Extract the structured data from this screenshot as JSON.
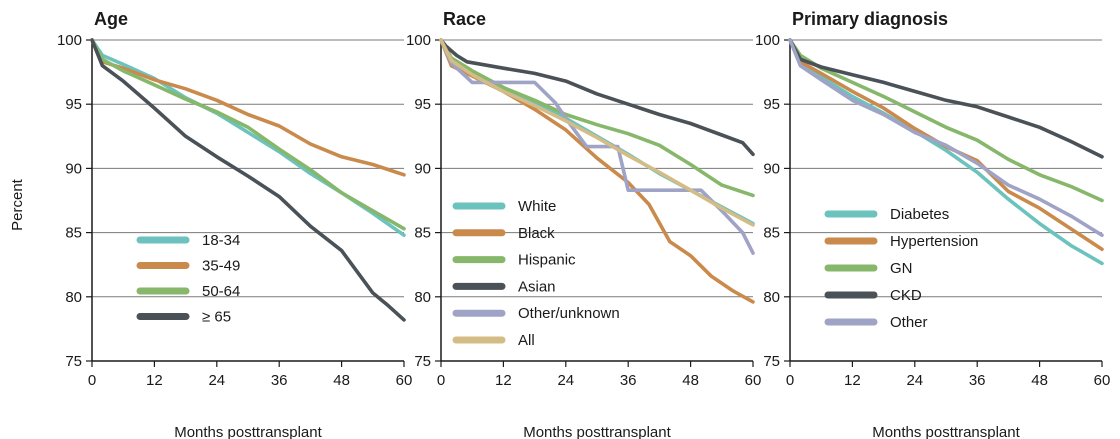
{
  "ylabel": "Percent",
  "chart_data": [
    {
      "type": "line",
      "title": "Age",
      "xlabel": "Months posttransplant",
      "ylabel": "Percent",
      "xlim": [
        0,
        60
      ],
      "ylim": [
        75,
        100
      ],
      "xticks": [
        0,
        12,
        24,
        36,
        48,
        60
      ],
      "yticks": [
        75,
        80,
        85,
        90,
        95,
        100
      ],
      "grid": "horizontal",
      "legend_position": "lower-left",
      "series": [
        {
          "name": "18-34",
          "color": "#6cc2bd",
          "x": [
            0,
            2,
            6,
            12,
            18,
            24,
            30,
            36,
            42,
            48,
            54,
            60
          ],
          "y": [
            100,
            98.8,
            98.1,
            97.0,
            95.5,
            94.3,
            92.8,
            91.3,
            89.6,
            88.1,
            86.5,
            84.8
          ]
        },
        {
          "name": "35-49",
          "color": "#c98a4c",
          "x": [
            0,
            2,
            6,
            12,
            18,
            24,
            30,
            36,
            42,
            48,
            54,
            60
          ],
          "y": [
            100,
            98.3,
            97.8,
            96.9,
            96.2,
            95.3,
            94.2,
            93.3,
            91.9,
            90.9,
            90.3,
            89.5
          ]
        },
        {
          "name": "50-64",
          "color": "#86b76a",
          "x": [
            0,
            2,
            6,
            12,
            18,
            24,
            30,
            36,
            42,
            48,
            54,
            60
          ],
          "y": [
            100,
            98.5,
            97.6,
            96.5,
            95.4,
            94.4,
            93.2,
            91.5,
            89.9,
            88.1,
            86.7,
            85.3
          ]
        },
        {
          "name": "≥ 65",
          "color": "#4a5258",
          "x": [
            0,
            2,
            6,
            12,
            18,
            24,
            30,
            36,
            42,
            48,
            54,
            57,
            60
          ],
          "y": [
            100,
            98.0,
            96.8,
            94.7,
            92.5,
            90.9,
            89.4,
            87.8,
            85.5,
            83.6,
            80.3,
            79.3,
            78.2
          ]
        }
      ]
    },
    {
      "type": "line",
      "title": "Race",
      "xlabel": "Months posttransplant",
      "xlim": [
        0,
        60
      ],
      "ylim": [
        75,
        100
      ],
      "xticks": [
        0,
        12,
        24,
        36,
        48,
        60
      ],
      "yticks": [
        75,
        80,
        85,
        90,
        95,
        100
      ],
      "grid": "horizontal",
      "legend_position": "lower-left",
      "series": [
        {
          "name": "White",
          "color": "#6cc2bd",
          "x": [
            0,
            2,
            6,
            12,
            18,
            24,
            30,
            36,
            42,
            48,
            54,
            60
          ],
          "y": [
            100,
            98.3,
            97.3,
            96.1,
            95.1,
            93.9,
            92.5,
            91.1,
            89.6,
            88.3,
            87.0,
            85.7
          ]
        },
        {
          "name": "Black",
          "color": "#c98a4c",
          "x": [
            0,
            2,
            6,
            12,
            18,
            24,
            30,
            36,
            40,
            44,
            48,
            52,
            56,
            60
          ],
          "y": [
            100,
            98.0,
            97.2,
            96.0,
            94.6,
            93.0,
            90.8,
            88.9,
            87.2,
            84.3,
            83.2,
            81.6,
            80.5,
            79.6
          ]
        },
        {
          "name": "Hispanic",
          "color": "#86b76a",
          "x": [
            0,
            2,
            6,
            12,
            18,
            24,
            30,
            36,
            42,
            48,
            54,
            60
          ],
          "y": [
            100,
            98.6,
            97.6,
            96.3,
            95.3,
            94.2,
            93.4,
            92.7,
            91.8,
            90.3,
            88.7,
            87.9
          ]
        },
        {
          "name": "Asian",
          "color": "#4a5258",
          "x": [
            0,
            1,
            3,
            5,
            12,
            18,
            24,
            30,
            36,
            42,
            48,
            54,
            58,
            60
          ],
          "y": [
            100,
            99.5,
            98.8,
            98.3,
            97.8,
            97.4,
            96.8,
            95.8,
            95.0,
            94.2,
            93.5,
            92.6,
            92.0,
            91.1
          ]
        },
        {
          "name": "Other/unknown",
          "color": "#9fa3c6",
          "x": [
            0,
            2,
            6,
            12,
            18,
            22,
            24,
            28,
            34,
            36,
            40,
            46,
            50,
            54,
            58,
            60
          ],
          "y": [
            100,
            98.2,
            96.7,
            96.7,
            96.7,
            95.1,
            93.9,
            91.7,
            91.7,
            88.3,
            88.3,
            88.3,
            88.3,
            86.7,
            85.0,
            83.4
          ]
        },
        {
          "name": "All",
          "color": "#d4bc86",
          "x": [
            0,
            2,
            6,
            12,
            18,
            24,
            30,
            36,
            42,
            48,
            54,
            60
          ],
          "y": [
            100,
            98.4,
            97.3,
            96.0,
            94.9,
            93.7,
            92.4,
            91.0,
            89.7,
            88.3,
            86.9,
            85.6
          ]
        }
      ]
    },
    {
      "type": "line",
      "title": "Primary diagnosis",
      "xlabel": "Months posttransplant",
      "xlim": [
        0,
        60
      ],
      "ylim": [
        75,
        100
      ],
      "xticks": [
        0,
        12,
        24,
        36,
        48,
        60
      ],
      "yticks": [
        75,
        80,
        85,
        90,
        95,
        100
      ],
      "grid": "horizontal",
      "legend_position": "lower-left",
      "series": [
        {
          "name": "Diabetes",
          "color": "#6cc2bd",
          "x": [
            0,
            2,
            6,
            12,
            18,
            24,
            30,
            36,
            42,
            48,
            54,
            60
          ],
          "y": [
            100,
            98.2,
            97.1,
            95.6,
            94.3,
            92.9,
            91.4,
            89.7,
            87.6,
            85.7,
            84.0,
            82.6
          ]
        },
        {
          "name": "Hypertension",
          "color": "#c98a4c",
          "x": [
            0,
            2,
            6,
            12,
            18,
            24,
            30,
            36,
            42,
            48,
            54,
            60
          ],
          "y": [
            100,
            98.3,
            97.4,
            96.0,
            94.7,
            93.1,
            91.7,
            90.6,
            88.2,
            86.9,
            85.3,
            83.7
          ]
        },
        {
          "name": "GN",
          "color": "#86b76a",
          "x": [
            0,
            2,
            6,
            12,
            18,
            24,
            30,
            36,
            42,
            48,
            54,
            60
          ],
          "y": [
            100,
            98.8,
            97.8,
            96.7,
            95.6,
            94.4,
            93.2,
            92.2,
            90.7,
            89.5,
            88.6,
            87.5
          ]
        },
        {
          "name": "CKD",
          "color": "#4a5258",
          "x": [
            0,
            2,
            6,
            12,
            18,
            24,
            30,
            36,
            42,
            48,
            54,
            60
          ],
          "y": [
            100,
            98.5,
            97.9,
            97.3,
            96.7,
            96.0,
            95.3,
            94.8,
            94.0,
            93.2,
            92.1,
            90.9
          ]
        },
        {
          "name": "Other",
          "color": "#9fa3c6",
          "x": [
            0,
            2,
            6,
            12,
            18,
            24,
            30,
            36,
            42,
            48,
            54,
            60
          ],
          "y": [
            100,
            98.0,
            96.9,
            95.3,
            94.2,
            92.8,
            91.8,
            90.4,
            88.7,
            87.6,
            86.3,
            84.8
          ]
        }
      ]
    }
  ]
}
